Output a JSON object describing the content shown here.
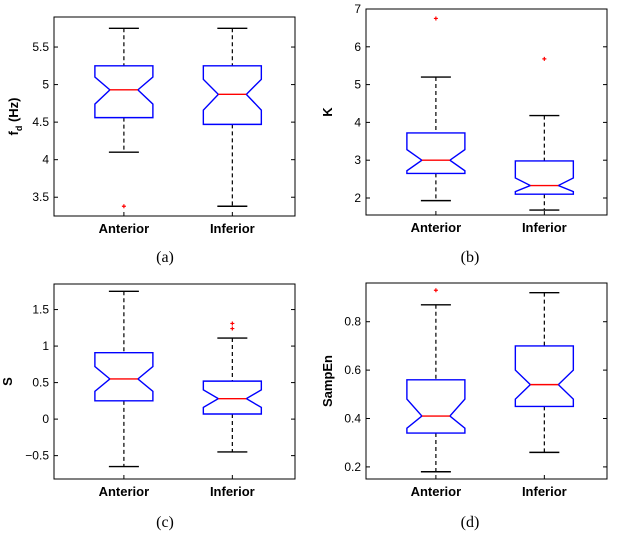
{
  "chart_data": [
    {
      "type": "boxplot",
      "notched": true,
      "caption": "(a)",
      "ylabel": {
        "main": "f",
        "sub": "d",
        "unit": " (Hz)"
      },
      "ylim": [
        3.25,
        5.9
      ],
      "yticks": [
        3.5,
        4,
        4.5,
        5,
        5.5
      ],
      "ytick_labels": [
        "3.5",
        "4",
        "4.5",
        "5",
        "5.5"
      ],
      "categories": [
        "Anterior",
        "Inferior"
      ],
      "boxes": [
        {
          "whisker_low": 4.1,
          "q1": 4.56,
          "notch_low": 4.74,
          "median": 4.93,
          "notch_high": 5.1,
          "q3": 5.25,
          "whisker_high": 5.75,
          "outliers": [
            3.38
          ]
        },
        {
          "whisker_low": 3.38,
          "q1": 4.47,
          "notch_low": 4.66,
          "median": 4.87,
          "notch_high": 5.07,
          "q3": 5.25,
          "whisker_high": 5.75,
          "outliers": []
        }
      ]
    },
    {
      "type": "boxplot",
      "notched": true,
      "caption": "(b)",
      "ylabel": {
        "main": "K",
        "sub": "",
        "unit": ""
      },
      "ylim": [
        1.55,
        7
      ],
      "yticks": [
        2,
        3,
        4,
        5,
        6,
        7
      ],
      "ytick_labels": [
        "2",
        "3",
        "4",
        "5",
        "6",
        "7"
      ],
      "categories": [
        "Anterior",
        "Inferior"
      ],
      "boxes": [
        {
          "whisker_low": 1.93,
          "q1": 2.65,
          "notch_low": 2.72,
          "median": 3.0,
          "notch_high": 3.28,
          "q3": 3.72,
          "whisker_high": 5.2,
          "outliers": [
            6.75
          ]
        },
        {
          "whisker_low": 1.68,
          "q1": 2.1,
          "notch_low": 2.17,
          "median": 2.33,
          "notch_high": 2.53,
          "q3": 2.98,
          "whisker_high": 4.18,
          "outliers": [
            5.68
          ]
        }
      ]
    },
    {
      "type": "boxplot",
      "notched": true,
      "caption": "(c)",
      "ylabel": {
        "main": "S",
        "sub": "",
        "unit": ""
      },
      "ylim": [
        -0.82,
        1.85
      ],
      "yticks": [
        -0.5,
        0,
        0.5,
        1,
        1.5
      ],
      "ytick_labels": [
        "−0.5",
        "0",
        "0.5",
        "1",
        "1.5"
      ],
      "categories": [
        "Anterior",
        "Inferior"
      ],
      "boxes": [
        {
          "whisker_low": -0.65,
          "q1": 0.25,
          "notch_low": 0.38,
          "median": 0.55,
          "notch_high": 0.72,
          "q3": 0.91,
          "whisker_high": 1.75,
          "outliers": []
        },
        {
          "whisker_low": -0.45,
          "q1": 0.07,
          "notch_low": 0.16,
          "median": 0.28,
          "notch_high": 0.4,
          "q3": 0.52,
          "whisker_high": 1.11,
          "outliers": [
            1.24,
            1.31
          ]
        }
      ]
    },
    {
      "type": "boxplot",
      "notched": true,
      "caption": "(d)",
      "ylabel": {
        "main": "SampEn",
        "sub": "",
        "unit": ""
      },
      "ylim": [
        0.15,
        0.96
      ],
      "yticks": [
        0.2,
        0.4,
        0.6,
        0.8
      ],
      "ytick_labels": [
        "0.2",
        "0.4",
        "0.6",
        "0.8"
      ],
      "categories": [
        "Anterior",
        "Inferior"
      ],
      "boxes": [
        {
          "whisker_low": 0.18,
          "q1": 0.34,
          "notch_low": 0.36,
          "median": 0.41,
          "notch_high": 0.48,
          "q3": 0.56,
          "whisker_high": 0.87,
          "outliers": [
            0.93
          ]
        },
        {
          "whisker_low": 0.26,
          "q1": 0.45,
          "notch_low": 0.48,
          "median": 0.54,
          "notch_high": 0.6,
          "q3": 0.7,
          "whisker_high": 0.92,
          "outliers": []
        }
      ]
    }
  ],
  "colors": {
    "box": "#0000ff",
    "median": "#ff0000",
    "outlier": "#ff0000",
    "whisker": "#000000"
  }
}
